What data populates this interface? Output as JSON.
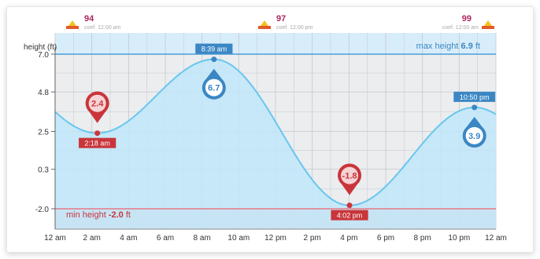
{
  "chart_data": {
    "type": "area",
    "y_axis_title": "height (ft)",
    "y_ticks": [
      "7.0",
      "4.8",
      "2.5",
      "0.3",
      "-2.0"
    ],
    "y_tick_values": [
      7.0,
      4.8,
      2.5,
      0.3,
      -2.0
    ],
    "ylim": [
      -2.0,
      7.0
    ],
    "x_tick_labels": [
      "12 am",
      "2 am",
      "4 am",
      "6 am",
      "8 am",
      "10 am",
      "12 pm",
      "2 pm",
      "4 pm",
      "6 pm",
      "8 pm",
      "10 pm",
      "12 am"
    ],
    "x_tick_hours": [
      0,
      2,
      4,
      6,
      8,
      10,
      12,
      14,
      16,
      18,
      20,
      22,
      24
    ],
    "xlim": [
      0,
      24
    ],
    "max_height": {
      "prefix": "max height ",
      "value": "6.9",
      "unit": " ft"
    },
    "min_height": {
      "prefix": "min height ",
      "value": "-2.0",
      "unit": " ft"
    },
    "tides": [
      {
        "kind": "low",
        "hour": 2.3,
        "height": 2.4,
        "value_label": "2.4",
        "time_label": "2:18 am"
      },
      {
        "kind": "high",
        "hour": 8.65,
        "height": 6.7,
        "value_label": "6.7",
        "time_label": "8:39 am"
      },
      {
        "kind": "low",
        "hour": 16.03,
        "height": -1.8,
        "value_label": "-1.8",
        "time_label": "4:02 pm"
      },
      {
        "kind": "high",
        "hour": 22.83,
        "height": 3.9,
        "value_label": "3.9",
        "time_label": "10:50 pm"
      }
    ],
    "coefficients": [
      {
        "value": "94",
        "label": "coef. 12:00 am"
      },
      {
        "value": "97",
        "label": "coef. 12:00 pm"
      },
      {
        "value": "99",
        "label": "coef. 12:00 am"
      }
    ],
    "grid": true,
    "colors": {
      "curve": "#69c6ef",
      "fill": "#bfe6f9",
      "high_marker": "#3b87c4",
      "low_marker": "#c9353a",
      "max_band": "#d4ebfa",
      "min_band": "#f3cfd3",
      "coef": "#b0255f",
      "text": "#333333",
      "grid": "#c5c8cc",
      "plot_bg": "#ebedef"
    }
  }
}
